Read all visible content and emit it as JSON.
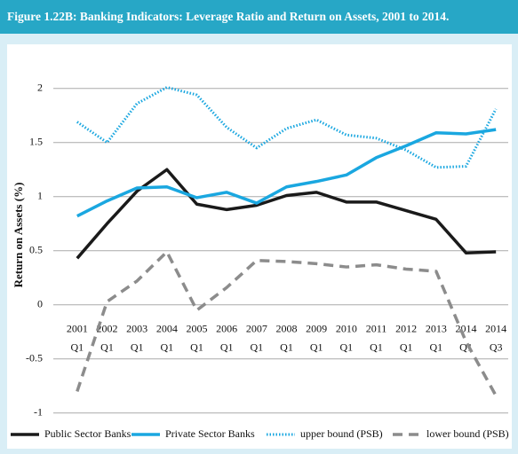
{
  "chart_data": {
    "type": "line",
    "title": "Figure 1.22B:  Banking Indicators: Leverage Ratio and Return on Assets, 2001 to 2014.",
    "y_label": "Return on Assets (%)",
    "categories": [
      [
        "2001",
        "Q1"
      ],
      [
        "2002",
        "Q1"
      ],
      [
        "2003",
        "Q1"
      ],
      [
        "2004",
        "Q1"
      ],
      [
        "2005",
        "Q1"
      ],
      [
        "2006",
        "Q1"
      ],
      [
        "2007",
        "Q1"
      ],
      [
        "2008",
        "Q1"
      ],
      [
        "2009",
        "Q1"
      ],
      [
        "2010",
        "Q1"
      ],
      [
        "2011",
        "Q1"
      ],
      [
        "2012",
        "Q1"
      ],
      [
        "2013",
        "Q1"
      ],
      [
        "2014",
        "Q1"
      ],
      [
        "2014",
        "Q3"
      ]
    ],
    "series": [
      {
        "name": "Public Sector Banks",
        "color": "#1a1a1a",
        "dash": "solid",
        "values": [
          0.43,
          0.75,
          1.05,
          1.25,
          0.93,
          0.88,
          0.92,
          1.01,
          1.04,
          0.95,
          0.95,
          0.87,
          0.79,
          0.48,
          0.49
        ]
      },
      {
        "name": "Private Sector Banks",
        "color": "#1aa7e0",
        "dash": "solid",
        "values": [
          0.82,
          0.96,
          1.08,
          1.09,
          0.99,
          1.04,
          0.94,
          1.09,
          1.14,
          1.2,
          1.36,
          1.47,
          1.59,
          1.58,
          1.62
        ]
      },
      {
        "name": "upper bound (PSB)",
        "color": "#1aa7e0",
        "dash": "dotted",
        "values": [
          1.69,
          1.5,
          1.86,
          2.01,
          1.94,
          1.64,
          1.45,
          1.63,
          1.71,
          1.57,
          1.54,
          1.43,
          1.27,
          1.28,
          1.81
        ]
      },
      {
        "name": "lower bound (PSB)",
        "color": "#8c8c8c",
        "dash": "dashed",
        "values": [
          -0.8,
          0.03,
          0.22,
          0.49,
          -0.05,
          0.16,
          0.41,
          0.4,
          0.38,
          0.35,
          0.37,
          0.33,
          0.31,
          -0.34,
          -0.84
        ]
      }
    ],
    "ylim": [
      -1.1,
      2.35
    ],
    "yticks": [
      -1,
      -0.5,
      0,
      0.5,
      1,
      1.5,
      2
    ],
    "grid": true,
    "legend": "bottom"
  }
}
